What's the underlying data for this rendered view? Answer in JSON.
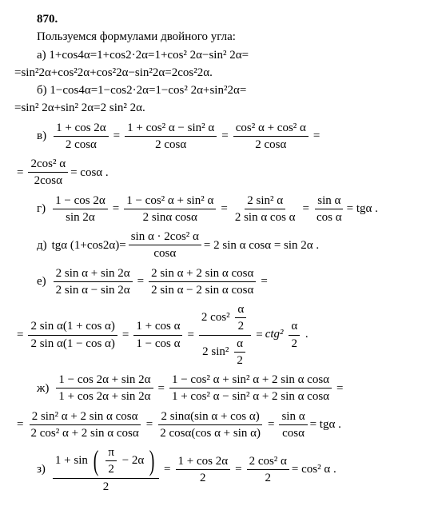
{
  "problem_number": "870.",
  "intro": "Пользуемся формулами двойного угла:",
  "part_a": {
    "label": "а)",
    "line1": "1+cos4α=1+cos2·2α=1+cos² 2α−sin² 2α=",
    "line2": "=sin²2α+cos²2α+cos²2α−sin²2α=2cos²2α."
  },
  "part_b": {
    "label": "б)",
    "line1": "1−cos4α=1−cos2·2α=1−cos² 2α+sin²2α=",
    "line2": "=sin² 2α+sin² 2α=2 sin² 2α."
  },
  "part_v": {
    "label": "в)",
    "f1": {
      "n": "1 + cos 2α",
      "d": "2 cosα"
    },
    "f2": {
      "n": "1 + cos² α − sin² α",
      "d": "2 cosα"
    },
    "f3": {
      "n": "cos² α + cos² α",
      "d": "2 cosα"
    },
    "f4": {
      "n": "2cos² α",
      "d": "2cosα"
    },
    "tail": "= cosα ."
  },
  "part_g": {
    "label": "г)",
    "f1": {
      "n": "1 − cos 2α",
      "d": "sin 2α"
    },
    "f2": {
      "n": "1 − cos² α + sin² α",
      "d": "2 sinα cosα"
    },
    "f3": {
      "n": "2 sin² α",
      "d": "2 sin α cos α"
    },
    "f4": {
      "n": "sin α",
      "d": "cos α"
    },
    "tail": "= tgα ."
  },
  "part_d": {
    "label": "д)",
    "lhs": "tgα (1+cos2α)=",
    "f1": {
      "n": "sin α · 2cos² α",
      "d": "cosα"
    },
    "tail": "= 2 sin α cosα = sin 2α ."
  },
  "part_e": {
    "label": "е)",
    "f1": {
      "n": "2 sin α + sin 2α",
      "d": "2 sin α − sin 2α"
    },
    "f2": {
      "n": "2 sin α + 2 sin α cosα",
      "d": "2 sin α − 2 sin α cosα"
    },
    "f3": {
      "n": "2 sin α(1 + cos α)",
      "d": "2 sin α(1 − cos α)"
    },
    "f4": {
      "n": "1 + cos α",
      "d": "1 − cos α"
    },
    "f5n_lead": "2 cos²",
    "f5d_lead": "2 sin²",
    "half": {
      "n": "α",
      "d": "2"
    },
    "ctg": "ctg²",
    "dot": " ."
  },
  "part_zh": {
    "label": "ж)",
    "f1": {
      "n": "1 − cos 2α + sin 2α",
      "d": "1 + cos 2α + sin 2α"
    },
    "f2": {
      "n": "1 − cos² α + sin² α + 2 sin α cosα",
      "d": "1 + cos² α − sin² α + 2 sin α cosα"
    },
    "f3": {
      "n": "2 sin² α + 2 sin α cosα",
      "d": "2 cos² α + 2 sin α cosα"
    },
    "f4": {
      "n": "2 sinα(sin α + cos α)",
      "d": "2 cosα(cos α + sin α)"
    },
    "f5": {
      "n": "sin α",
      "d": "cosα"
    },
    "tail": "= tgα ."
  },
  "part_z": {
    "label": "з)",
    "num_lead": "1 + sin",
    "inner": {
      "n": "π",
      "d": "2"
    },
    "inner_tail": " − 2α",
    "den": "2",
    "f2": {
      "n": "1 + cos 2α",
      "d": "2"
    },
    "f3": {
      "n": "2 cos² α",
      "d": "2"
    },
    "tail": "= cos² α ."
  }
}
